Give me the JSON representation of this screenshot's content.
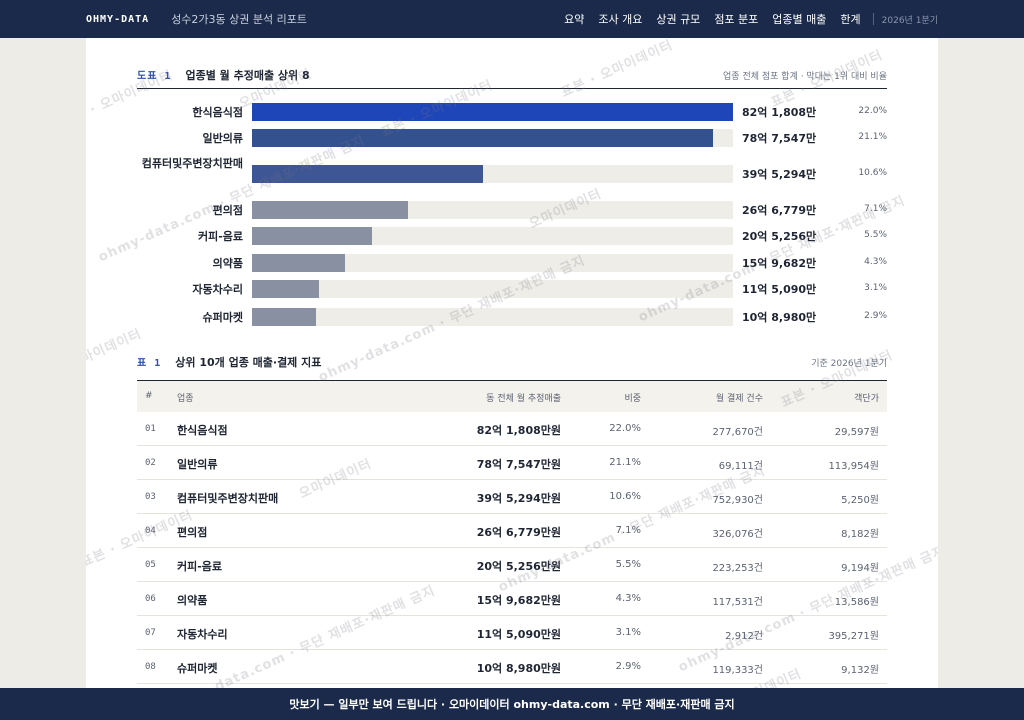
{
  "header": {
    "brand": "OHMY-DATA",
    "title": "성수2가3동 상권 분석 리포트",
    "nav": [
      "요약",
      "조사 개요",
      "상권 규모",
      "점포 분포",
      "업종별 매출",
      "한계"
    ],
    "period": "2026년 1분기"
  },
  "figure1": {
    "tag": "도표 1",
    "title": "업종별 월 추정매출 상위 8",
    "note": "업종 전체 점포 합계 · 막대는 1위 대비 비율"
  },
  "chart_data": {
    "type": "bar",
    "orientation": "horizontal",
    "title": "업종별 월 추정매출 상위 8",
    "categories": [
      "한식음식점",
      "일반의류",
      "컴퓨터및주변장치판매",
      "편의점",
      "커피-음료",
      "의약품",
      "자동차수리",
      "슈퍼마켓"
    ],
    "values": [
      821808,
      787547,
      395294,
      266779,
      205256,
      159682,
      115090,
      108980
    ],
    "value_labels": [
      "82억 1,808만",
      "78억 7,547만",
      "39억 5,294만",
      "26억 6,779만",
      "20억 5,256만",
      "15억 9,682만",
      "11억 5,090만",
      "10억 8,980만"
    ],
    "shares": [
      "22.0%",
      "21.1%",
      "10.6%",
      "7.1%",
      "5.5%",
      "4.3%",
      "3.1%",
      "2.9%"
    ],
    "colors": [
      "#1f46b8",
      "#34518f",
      "#3e5694",
      "#8890a2",
      "#8890a2",
      "#8890a2",
      "#8890a2",
      "#8890a2"
    ]
  },
  "table1": {
    "tag": "표 1",
    "title": "상위 10개 업종 매출·결제 지표",
    "note": "기준 2026년 1분기",
    "columns": [
      "#",
      "업종",
      "동 전체 월 추정매출",
      "비중",
      "월 결제 건수",
      "객단가"
    ],
    "rows": [
      {
        "no": "01",
        "name": "한식음식점",
        "sales": "82억 1,808만원",
        "share": "22.0%",
        "count": "277,670건",
        "avg": "29,597원"
      },
      {
        "no": "02",
        "name": "일반의류",
        "sales": "78억 7,547만원",
        "share": "21.1%",
        "count": "69,111건",
        "avg": "113,954원"
      },
      {
        "no": "03",
        "name": "컴퓨터및주변장치판매",
        "sales": "39억 5,294만원",
        "share": "10.6%",
        "count": "752,930건",
        "avg": "5,250원"
      },
      {
        "no": "04",
        "name": "편의점",
        "sales": "26억 6,779만원",
        "share": "7.1%",
        "count": "326,076건",
        "avg": "8,182원"
      },
      {
        "no": "05",
        "name": "커피-음료",
        "sales": "20억 5,256만원",
        "share": "5.5%",
        "count": "223,253건",
        "avg": "9,194원"
      },
      {
        "no": "06",
        "name": "의약품",
        "sales": "15억 9,682만원",
        "share": "4.3%",
        "count": "117,531건",
        "avg": "13,586원"
      },
      {
        "no": "07",
        "name": "자동차수리",
        "sales": "11억 5,090만원",
        "share": "3.1%",
        "count": "2,912건",
        "avg": "395,271원"
      },
      {
        "no": "08",
        "name": "슈퍼마켓",
        "sales": "10억 8,980만원",
        "share": "2.9%",
        "count": "119,333건",
        "avg": "9,132원"
      }
    ]
  },
  "watermarks": {
    "a": "표본 · 오마이데이터",
    "b": "ohmy-data.com · 무단 재배포·재판매 금지",
    "c": "오마이데이터"
  },
  "footer": {
    "text": "맛보기 — 일부만 보여 드립니다 · 오마이데이터 ohmy-data.com · 무단 재배포·재판매 금지"
  }
}
